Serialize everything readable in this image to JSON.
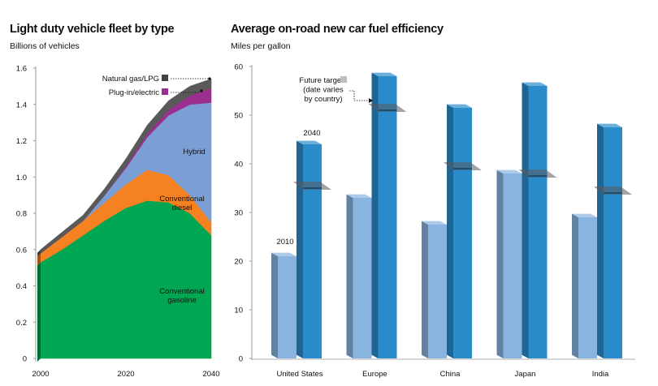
{
  "chart_data": [
    {
      "type": "area",
      "stacked": true,
      "title": "Light duty vehicle fleet by type",
      "ylabel": "Billions of vehicles",
      "xlabel": "",
      "x": [
        2000,
        2005,
        2010,
        2015,
        2020,
        2025,
        2030,
        2035,
        2040
      ],
      "xticks": [
        2000,
        2020,
        2040
      ],
      "ylim": [
        0,
        1.6
      ],
      "yticks": [
        0,
        0.2,
        0.4,
        0.6,
        0.8,
        1.0,
        1.2,
        1.4,
        1.6
      ],
      "ytick_labels": [
        "0",
        "0.2",
        "0.4",
        "0.6",
        "0.8",
        "1.0",
        "1.2",
        "1.4",
        "1.6"
      ],
      "xtick_labels": [
        "2000",
        "2020",
        "2040"
      ],
      "grid": false,
      "series": [
        {
          "name": "Conventional gasoline",
          "label_lines": [
            "Conventional",
            "gasoline"
          ],
          "color": "#00a651",
          "values": [
            0.53,
            0.6,
            0.68,
            0.76,
            0.83,
            0.87,
            0.86,
            0.8,
            0.68
          ]
        },
        {
          "name": "Conventional diesel",
          "label_lines": [
            "Conventional",
            "diesel"
          ],
          "color": "#f68121",
          "values": [
            0.05,
            0.07,
            0.08,
            0.1,
            0.13,
            0.17,
            0.15,
            0.1,
            0.07
          ]
        },
        {
          "name": "Hybrid",
          "label_lines": [
            "Hybrid"
          ],
          "color": "#7b9fd4",
          "values": [
            0,
            0,
            0,
            0.04,
            0.09,
            0.18,
            0.33,
            0.5,
            0.66
          ]
        },
        {
          "name": "Plug-in/electric",
          "label_lines": [
            "Plug-in/electric"
          ],
          "color": "#9b2f8f",
          "values": [
            0,
            0,
            0,
            0,
            0.01,
            0.02,
            0.03,
            0.05,
            0.08
          ]
        },
        {
          "name": "Natural gas/LPG",
          "label_lines": [
            "Natural gas/LPG"
          ],
          "color": "#595959",
          "values": [
            0.02,
            0.025,
            0.03,
            0.035,
            0.04,
            0.045,
            0.05,
            0.05,
            0.05
          ]
        }
      ],
      "legend": [
        {
          "name": "Natural gas/LPG",
          "color": "#444444"
        },
        {
          "name": "Plug-in/electric",
          "color": "#9b2f8f"
        }
      ]
    },
    {
      "type": "bar",
      "title": "Average on-road new car fuel efficiency",
      "ylabel": "Miles per gallon",
      "xlabel": "",
      "ylim": [
        0,
        60
      ],
      "yticks": [
        0,
        10,
        20,
        30,
        40,
        50,
        60
      ],
      "ytick_labels": [
        "0",
        "10",
        "20",
        "30",
        "40",
        "50",
        "60"
      ],
      "grid": false,
      "categories": [
        "United States",
        "Europe",
        "China",
        "Japan",
        "India"
      ],
      "series": [
        {
          "name": "2010",
          "color": "#8ab4e0",
          "values": [
            21,
            33,
            27.5,
            38,
            29
          ]
        },
        {
          "name": "2040",
          "color": "#2b8ccc",
          "values": [
            44,
            58,
            51.5,
            56,
            47.5
          ]
        }
      ],
      "future_targets": [
        35,
        51,
        39,
        37.5,
        34
      ],
      "annotations": {
        "bar_2010": "2010",
        "bar_2040": "2040",
        "future_targets_lines": [
          "Future targets",
          "(date varies",
          "by country)"
        ]
      }
    }
  ]
}
